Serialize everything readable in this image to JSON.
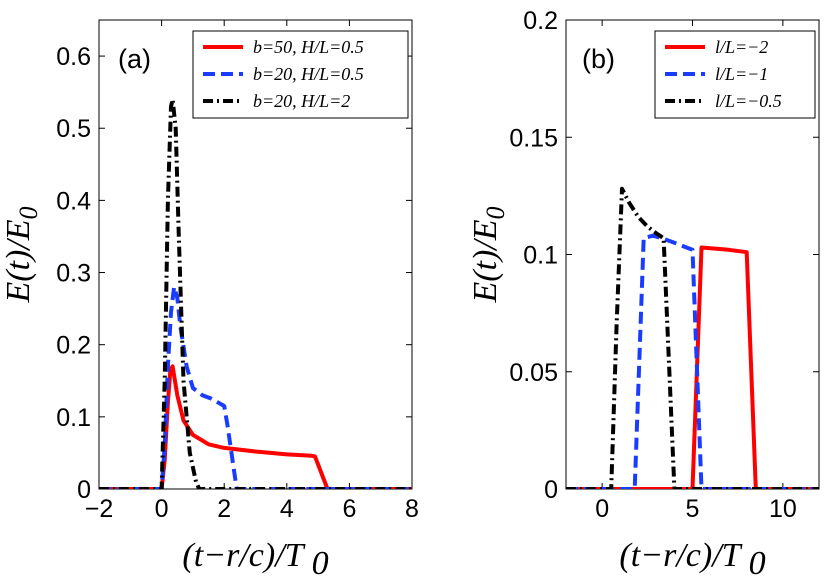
{
  "chart_data": [
    {
      "type": "line",
      "panel_label": "(a)",
      "xlabel": "(t−r/c)/T 0",
      "ylabel": "E(t)/E0",
      "xlim": [
        -2,
        8
      ],
      "ylim": [
        0,
        0.65
      ],
      "xticks": [
        -2,
        0,
        2,
        4,
        6,
        8
      ],
      "xtick_labels": [
        "−2",
        "0",
        "2",
        "4",
        "6",
        "8"
      ],
      "yticks": [
        0,
        0.1,
        0.2,
        0.3,
        0.4,
        0.5,
        0.6
      ],
      "ytick_labels": [
        "0",
        "0.1",
        "0.2",
        "0.3",
        "0.4",
        "0.5",
        "0.6"
      ],
      "legend_position": "top-right",
      "series": [
        {
          "name": "b=50, H/L=0.5",
          "color": "#ff0000",
          "style": "solid",
          "x": [
            -2,
            0.0,
            0.1,
            0.2,
            0.28,
            0.35,
            0.5,
            0.7,
            1.0,
            1.5,
            2.0,
            3.0,
            4.0,
            4.8,
            4.9,
            5.3,
            5.4,
            8
          ],
          "y": [
            0,
            0,
            0.04,
            0.12,
            0.165,
            0.17,
            0.13,
            0.095,
            0.075,
            0.062,
            0.057,
            0.052,
            0.048,
            0.046,
            0.045,
            0.0,
            0,
            0
          ]
        },
        {
          "name": "b=20, H/L=0.5",
          "color": "#1a3cff",
          "style": "dashed",
          "x": [
            -2,
            0.0,
            0.1,
            0.2,
            0.3,
            0.4,
            0.5,
            0.6,
            0.8,
            1.0,
            1.3,
            1.6,
            2.0,
            2.1,
            2.4,
            2.5,
            8
          ],
          "y": [
            0,
            0,
            0.06,
            0.17,
            0.245,
            0.28,
            0.265,
            0.225,
            0.17,
            0.14,
            0.13,
            0.125,
            0.115,
            0.09,
            0.0,
            0,
            0
          ]
        },
        {
          "name": "b=20, H/L=2",
          "color": "#000000",
          "style": "dashdot",
          "x": [
            -2,
            0.0,
            0.1,
            0.2,
            0.3,
            0.35,
            0.45,
            0.55,
            0.7,
            0.9,
            1.1,
            1.2,
            8
          ],
          "y": [
            0,
            0,
            0.15,
            0.4,
            0.53,
            0.54,
            0.5,
            0.35,
            0.15,
            0.05,
            0.01,
            0,
            0
          ]
        }
      ]
    },
    {
      "type": "line",
      "panel_label": "(b)",
      "xlabel": "(t−r/c)/T 0",
      "ylabel": "E(t)/E0",
      "xlim": [
        -2,
        12
      ],
      "ylim": [
        0,
        0.2
      ],
      "xticks": [
        0,
        5,
        10
      ],
      "xtick_labels": [
        "0",
        "5",
        "10"
      ],
      "yticks": [
        0,
        0.05,
        0.1,
        0.15,
        0.2
      ],
      "ytick_labels": [
        "0",
        "0.05",
        "0.1",
        "0.15",
        "0.2"
      ],
      "legend_position": "top-right",
      "series": [
        {
          "name": "l/L=−2",
          "color": "#ff0000",
          "style": "solid",
          "x": [
            -2,
            5.0,
            5.5,
            7.0,
            8.0,
            8.5,
            12
          ],
          "y": [
            0,
            0,
            0.103,
            0.102,
            0.101,
            0,
            0
          ]
        },
        {
          "name": "l/L=−1",
          "color": "#1a3cff",
          "style": "dashed",
          "x": [
            -2,
            1.8,
            2.3,
            2.8,
            3.3,
            4.0,
            5.0,
            5.5,
            12
          ],
          "y": [
            0,
            0,
            0.107,
            0.108,
            0.107,
            0.105,
            0.102,
            0,
            0
          ]
        },
        {
          "name": "l/L=−0.5",
          "color": "#000000",
          "style": "dashdot",
          "x": [
            -2,
            0.5,
            0.8,
            1.1,
            1.5,
            2.0,
            2.5,
            3.0,
            3.4,
            4.0,
            12
          ],
          "y": [
            0,
            0,
            0.07,
            0.128,
            0.122,
            0.116,
            0.112,
            0.109,
            0.107,
            0,
            0
          ]
        }
      ]
    }
  ]
}
